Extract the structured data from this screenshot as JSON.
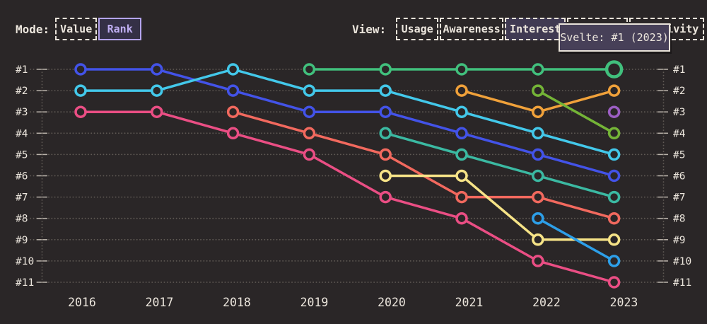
{
  "header": {
    "mode": {
      "label": "Mode:",
      "options": [
        {
          "label": "Value",
          "selected": false
        },
        {
          "label": "Rank",
          "selected": true
        }
      ]
    },
    "view": {
      "label": "View:",
      "options": [
        {
          "label": "Usage",
          "selected": false
        },
        {
          "label": "Awareness",
          "selected": false
        },
        {
          "label": "Interest",
          "selected": true
        },
        {
          "label": "",
          "selected": false
        },
        {
          "label": "Positivity",
          "selected": false
        }
      ]
    }
  },
  "tooltip": {
    "text": "Svelte: #1 (2023)"
  },
  "colors": {
    "background": "#2a2627",
    "text_cream": "#ece6dd",
    "grid_dots": "#6e6861",
    "axis_tick": "#b9b2aa",
    "accent_purple": "#b4a4ee",
    "tooltip_bg": "#474058",
    "selected_view_bg": "#403a52"
  },
  "chart_data": {
    "type": "line",
    "subtype": "rank-bump",
    "title": "",
    "xlabel": "",
    "ylabel": "",
    "x": [
      2016,
      2017,
      2018,
      2019,
      2020,
      2021,
      2022,
      2023
    ],
    "x_tick_labels": [
      "2016",
      "2017",
      "2018",
      "2019",
      "2020",
      "2021",
      "2022",
      "2023"
    ],
    "y_tick_labels": [
      "#1",
      "#2",
      "#3",
      "#4",
      "#5",
      "#6",
      "#7",
      "#8",
      "#9",
      "#10",
      "#11"
    ],
    "y_axis": {
      "min": 1,
      "max": 11,
      "inverted": true,
      "shown_on": "both sides"
    },
    "grid": "dotted horizontal leader lines per rank, dotted vertical edge rails, solid tick dashes",
    "legend": "none (identified via hover tooltip)",
    "highlight": {
      "series": "Svelte",
      "year": 2023,
      "rank": 1,
      "tooltip": "Svelte: #1 (2023)"
    },
    "series": [
      {
        "id": "royal-blue",
        "name": "",
        "color": "#4353e8",
        "points": [
          [
            2016,
            1
          ],
          [
            2017,
            1
          ],
          [
            2018,
            2
          ],
          [
            2019,
            3
          ],
          [
            2020,
            3
          ],
          [
            2021,
            4
          ],
          [
            2022,
            5
          ],
          [
            2023,
            6
          ]
        ]
      },
      {
        "id": "cyan",
        "name": "",
        "color": "#43c8ea",
        "points": [
          [
            2016,
            2
          ],
          [
            2017,
            2
          ],
          [
            2018,
            1
          ],
          [
            2019,
            2
          ],
          [
            2020,
            2
          ],
          [
            2021,
            3
          ],
          [
            2022,
            4
          ],
          [
            2023,
            5
          ]
        ]
      },
      {
        "id": "pink",
        "name": "",
        "color": "#ea4e84",
        "points": [
          [
            2016,
            3
          ],
          [
            2017,
            3
          ],
          [
            2018,
            4
          ],
          [
            2019,
            5
          ],
          [
            2020,
            7
          ],
          [
            2021,
            8
          ],
          [
            2022,
            10
          ],
          [
            2023,
            11
          ]
        ]
      },
      {
        "id": "salmon",
        "name": "",
        "color": "#f2695e",
        "points": [
          [
            2018,
            3
          ],
          [
            2019,
            4
          ],
          [
            2020,
            5
          ],
          [
            2021,
            7
          ],
          [
            2022,
            7
          ],
          [
            2023,
            8
          ]
        ]
      },
      {
        "id": "teal",
        "name": "",
        "color": "#3bb9a2",
        "points": [
          [
            2020,
            4
          ],
          [
            2021,
            5
          ],
          [
            2022,
            6
          ],
          [
            2023,
            7
          ]
        ]
      },
      {
        "id": "yellow",
        "name": "",
        "color": "#f6e387",
        "points": [
          [
            2020,
            6
          ],
          [
            2021,
            6
          ],
          [
            2022,
            9
          ],
          [
            2023,
            9
          ]
        ]
      },
      {
        "id": "orange",
        "name": "",
        "color": "#f0a13a",
        "points": [
          [
            2021,
            2
          ],
          [
            2022,
            3
          ],
          [
            2023,
            2
          ]
        ]
      },
      {
        "id": "olive-green",
        "name": "",
        "color": "#74b437",
        "points": [
          [
            2022,
            2
          ],
          [
            2023,
            4
          ]
        ]
      },
      {
        "id": "light-blue",
        "name": "",
        "color": "#2d9fe8",
        "points": [
          [
            2022,
            8
          ],
          [
            2023,
            10
          ]
        ]
      },
      {
        "id": "purple",
        "name": "",
        "color": "#9c5ec3",
        "points": [
          [
            2023,
            3
          ]
        ]
      },
      {
        "id": "green-svelte",
        "name": "Svelte",
        "color": "#41c07d",
        "points": [
          [
            2019,
            1
          ],
          [
            2020,
            1
          ],
          [
            2021,
            1
          ],
          [
            2022,
            1
          ],
          [
            2023,
            1
          ]
        ]
      }
    ]
  }
}
